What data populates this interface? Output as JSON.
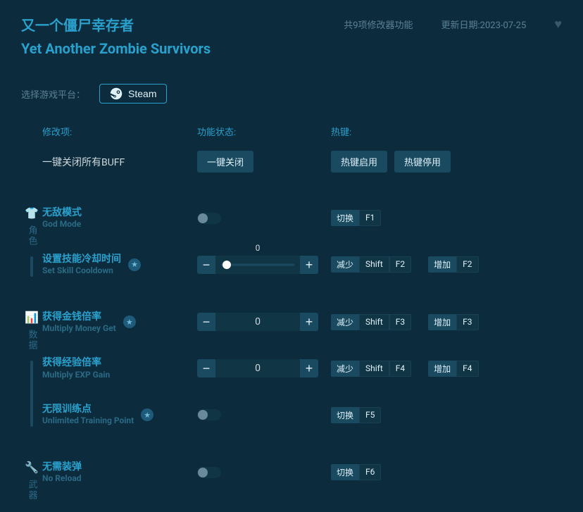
{
  "header": {
    "title_cn": "又一个僵尸幸存者",
    "title_en": "Yet Another Zombie Survivors",
    "count_label": "共9项修改器功能",
    "date_label": "更新日期:2023-07-25"
  },
  "platform": {
    "label": "选择游戏平台：",
    "button": "Steam"
  },
  "columns": {
    "mod": "修改项:",
    "state": "功能状态:",
    "hotkey": "热键:"
  },
  "close_all": {
    "label": "一键关闭所有BUFF",
    "btn": "一键关闭",
    "hk_enable": "热键启用",
    "hk_disable": "热键停用"
  },
  "labels": {
    "toggle": "切换",
    "dec": "减少",
    "inc": "增加",
    "shift": "Shift",
    "minus": "−",
    "plus": "+"
  },
  "sections": [
    {
      "id": "role",
      "icon": "👕",
      "label": "角色",
      "rows": [
        {
          "id": "god-mode",
          "cn": "无敌模式",
          "en": "God Mode",
          "star": false,
          "control": "toggle",
          "hk": {
            "type": "toggle",
            "key": "F1"
          }
        },
        {
          "id": "skill-cd",
          "cn": "设置技能冷却时间",
          "en": "Set Skill Cooldown",
          "star": true,
          "control": "slider",
          "value": "0",
          "hk": {
            "type": "pair",
            "key": "F2"
          }
        }
      ]
    },
    {
      "id": "data",
      "icon": "📊",
      "label": "数据",
      "rows": [
        {
          "id": "money-mult",
          "cn": "获得金钱倍率",
          "en": "Multiply Money Get",
          "star": true,
          "control": "number",
          "value": "0",
          "hk": {
            "type": "pair",
            "key": "F3"
          }
        },
        {
          "id": "exp-mult",
          "cn": "获得经验倍率",
          "en": "Multiply EXP Gain",
          "star": false,
          "control": "number",
          "value": "0",
          "hk": {
            "type": "pair",
            "key": "F4"
          }
        },
        {
          "id": "train-pts",
          "cn": "无限训练点",
          "en": "Unlimited Training Point",
          "star": true,
          "control": "toggle",
          "hk": {
            "type": "toggle",
            "key": "F5"
          }
        }
      ]
    },
    {
      "id": "weapon",
      "icon": "🔧",
      "label": "武器",
      "rows": [
        {
          "id": "no-reload",
          "cn": "无需装弹",
          "en": "No Reload",
          "star": false,
          "control": "toggle",
          "hk": {
            "type": "toggle",
            "key": "F6"
          }
        }
      ]
    }
  ]
}
